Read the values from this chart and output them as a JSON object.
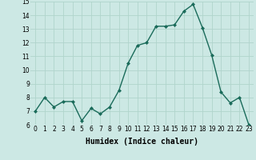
{
  "x": [
    0,
    1,
    2,
    3,
    4,
    5,
    6,
    7,
    8,
    9,
    10,
    11,
    12,
    13,
    14,
    15,
    16,
    17,
    18,
    19,
    20,
    21,
    22,
    23
  ],
  "y": [
    7.0,
    8.0,
    7.3,
    7.7,
    7.7,
    6.3,
    7.2,
    6.8,
    7.3,
    8.5,
    10.5,
    11.8,
    12.0,
    13.2,
    13.2,
    13.3,
    14.3,
    14.8,
    13.1,
    11.1,
    8.4,
    7.6,
    8.0,
    6.0
  ],
  "line_color": "#1a6b5a",
  "marker": "D",
  "marker_size": 2.0,
  "background_color": "#cce8e4",
  "grid_color": "#b0d4cc",
  "xlabel": "Humidex (Indice chaleur)",
  "ylim": [
    6,
    15
  ],
  "xlim_min": -0.5,
  "xlim_max": 23.5,
  "yticks": [
    6,
    7,
    8,
    9,
    10,
    11,
    12,
    13,
    14,
    15
  ],
  "xticks": [
    0,
    1,
    2,
    3,
    4,
    5,
    6,
    7,
    8,
    9,
    10,
    11,
    12,
    13,
    14,
    15,
    16,
    17,
    18,
    19,
    20,
    21,
    22,
    23
  ],
  "tick_fontsize": 5.5,
  "xlabel_fontsize": 7.0
}
